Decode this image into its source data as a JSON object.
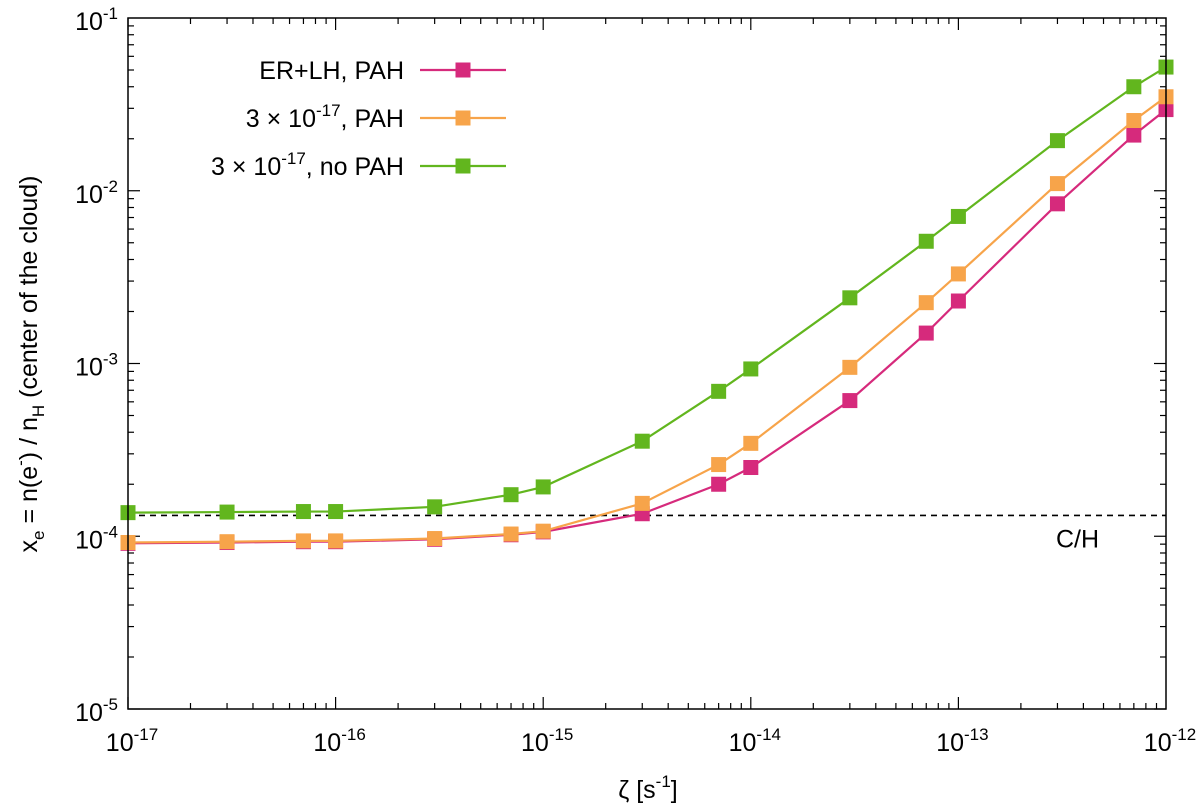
{
  "chart_data": {
    "type": "line",
    "xscale": "log",
    "yscale": "log",
    "xlim": [
      1e-17,
      1e-12
    ],
    "ylim": [
      1e-05,
      0.1
    ],
    "xlabel": "ζ  [s-1]",
    "ylabel": "xe = n(e-) / nH   (center of the cloud)",
    "xticks": [
      {
        "value": 1e-17,
        "base": "10",
        "exp": "-17"
      },
      {
        "value": 1e-16,
        "base": "10",
        "exp": "-16"
      },
      {
        "value": 1e-15,
        "base": "10",
        "exp": "-15"
      },
      {
        "value": 1e-14,
        "base": "10",
        "exp": "-14"
      },
      {
        "value": 1e-13,
        "base": "10",
        "exp": "-13"
      },
      {
        "value": 1e-12,
        "base": "10",
        "exp": "-12"
      }
    ],
    "yticks": [
      {
        "value": 1e-05,
        "base": "10",
        "exp": "-5"
      },
      {
        "value": 0.0001,
        "base": "10",
        "exp": "-4"
      },
      {
        "value": 0.001,
        "base": "10",
        "exp": "-3"
      },
      {
        "value": 0.01,
        "base": "10",
        "exp": "-2"
      },
      {
        "value": 0.1,
        "base": "10",
        "exp": "-1"
      }
    ],
    "x": [
      1e-17,
      3e-17,
      7e-17,
      1e-16,
      3e-16,
      7e-16,
      1e-15,
      3e-15,
      7e-15,
      1e-14,
      3e-14,
      7e-14,
      1e-13,
      3e-13,
      7e-13,
      1e-12
    ],
    "series": [
      {
        "name": "ER+LH, PAH",
        "color": "#d62a7c",
        "values": [
          9.1e-05,
          9.2e-05,
          9.3e-05,
          9.3e-05,
          9.6e-05,
          0.000102,
          0.000106,
          0.000135,
          0.0002,
          0.00025,
          0.00061,
          0.0015,
          0.0023,
          0.0084,
          0.021,
          0.0295
        ]
      },
      {
        "name": "3 × 10-17, PAH",
        "color": "#f7a44a",
        "values": [
          9.2e-05,
          9.3e-05,
          9.4e-05,
          9.4e-05,
          9.7e-05,
          0.000103,
          0.000107,
          0.000155,
          0.00026,
          0.000345,
          0.00095,
          0.00225,
          0.0033,
          0.011,
          0.0255,
          0.035
        ]
      },
      {
        "name": "3 × 10-17, no PAH",
        "color": "#62b61e",
        "values": [
          0.000137,
          0.000138,
          0.000139,
          0.000139,
          0.000148,
          0.000174,
          0.000193,
          0.000355,
          0.00069,
          0.00093,
          0.0024,
          0.0051,
          0.0071,
          0.0195,
          0.04,
          0.052
        ]
      }
    ],
    "legend": {
      "position": "top-left",
      "entries": [
        {
          "pre": "ER+LH, PAH",
          "exp": "",
          "post": ""
        },
        {
          "pre": "3 × 10",
          "exp": "-17",
          "post": ", PAH"
        },
        {
          "pre": "3 × 10",
          "exp": "-17",
          "post": ", no PAH"
        }
      ]
    },
    "reference_line": {
      "label": "C/H",
      "value": 0.000132,
      "style": "dashed",
      "color": "#000000"
    }
  },
  "labels": {
    "xlabel_main": "ζ  [s",
    "xlabel_exp": "-1",
    "xlabel_close": "]",
    "ylabel_xe": "x",
    "ylabel_xe_sub": "e",
    "ylabel_mid": " = n(e",
    "ylabel_mid_sup": "-",
    "ylabel_mid2": ") / n",
    "ylabel_nh_sub": "H",
    "ylabel_tail": "   (center of the cloud)",
    "ref_label": "C/H"
  }
}
